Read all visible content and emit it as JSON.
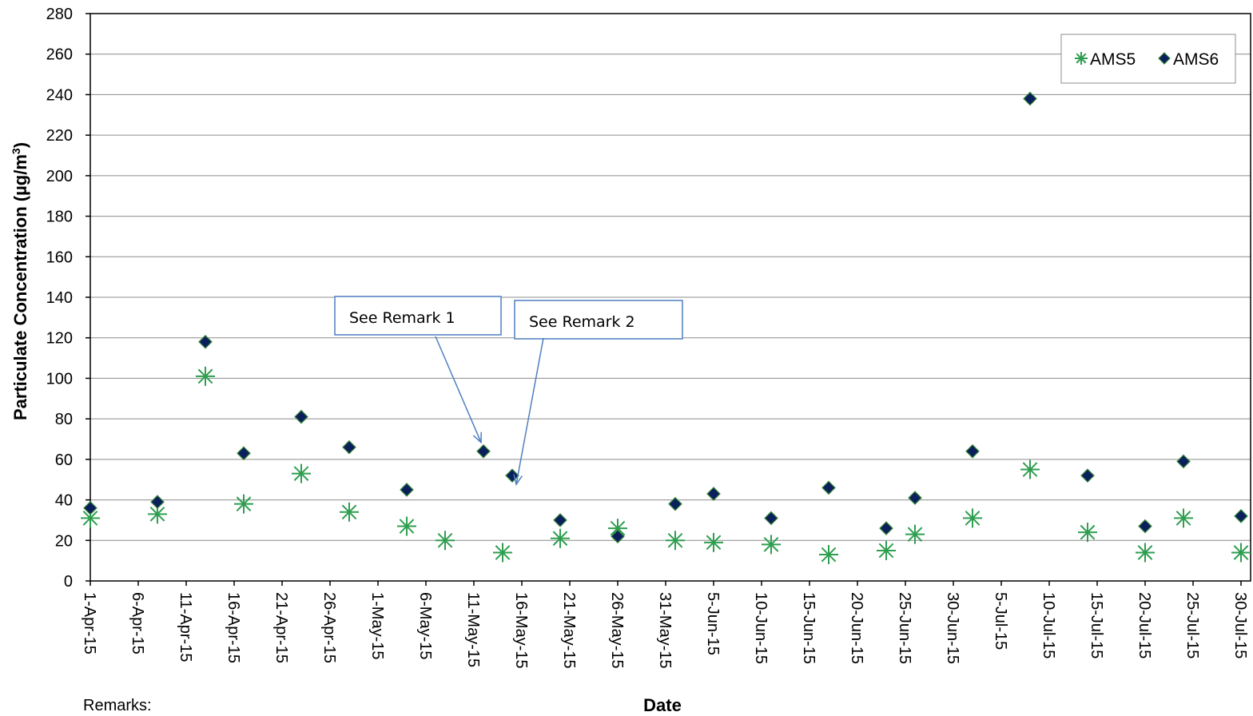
{
  "chart_data": {
    "type": "scatter",
    "title": "",
    "xlabel": "Date",
    "ylabel": "Particulate Concentration (µg/m³)",
    "ylabel_text": "Particulate Concentration (µg/m",
    "ylabel_sup": "3",
    "ylabel_close": ")",
    "ylim": [
      0,
      280
    ],
    "y_ticks": [
      0,
      20,
      40,
      60,
      80,
      100,
      120,
      140,
      160,
      180,
      200,
      220,
      240,
      260,
      280
    ],
    "xlim": [
      "2015-04-01",
      "2015-07-31"
    ],
    "x_tick_labels": [
      "1-Apr-15",
      "6-Apr-15",
      "11-Apr-15",
      "16-Apr-15",
      "21-Apr-15",
      "26-Apr-15",
      "1-May-15",
      "6-May-15",
      "11-May-15",
      "16-May-15",
      "21-May-15",
      "26-May-15",
      "31-May-15",
      "5-Jun-15",
      "10-Jun-15",
      "15-Jun-15",
      "20-Jun-15",
      "25-Jun-15",
      "30-Jun-15",
      "5-Jul-15",
      "10-Jul-15",
      "15-Jul-15",
      "20-Jul-15",
      "25-Jul-15",
      "30-Jul-15"
    ],
    "grid": "horizontal",
    "legend_position": "top-right",
    "series": [
      {
        "name": "AMS5",
        "marker": "asterisk",
        "color": "#2e9e4f",
        "points": [
          {
            "x": "2015-04-01",
            "y": 31
          },
          {
            "x": "2015-04-08",
            "y": 33
          },
          {
            "x": "2015-04-13",
            "y": 101
          },
          {
            "x": "2015-04-17",
            "y": 38
          },
          {
            "x": "2015-04-23",
            "y": 53
          },
          {
            "x": "2015-04-28",
            "y": 34
          },
          {
            "x": "2015-05-04",
            "y": 27
          },
          {
            "x": "2015-05-08",
            "y": 20
          },
          {
            "x": "2015-05-14",
            "y": 14
          },
          {
            "x": "2015-05-20",
            "y": 21
          },
          {
            "x": "2015-05-26",
            "y": 26
          },
          {
            "x": "2015-06-01",
            "y": 20
          },
          {
            "x": "2015-06-05",
            "y": 19
          },
          {
            "x": "2015-06-11",
            "y": 18
          },
          {
            "x": "2015-06-17",
            "y": 13
          },
          {
            "x": "2015-06-23",
            "y": 15
          },
          {
            "x": "2015-06-26",
            "y": 23
          },
          {
            "x": "2015-07-02",
            "y": 31
          },
          {
            "x": "2015-07-08",
            "y": 55
          },
          {
            "x": "2015-07-14",
            "y": 24
          },
          {
            "x": "2015-07-20",
            "y": 14
          },
          {
            "x": "2015-07-24",
            "y": 31
          },
          {
            "x": "2015-07-30",
            "y": 14
          }
        ]
      },
      {
        "name": "AMS6",
        "marker": "diamond",
        "color": "#0a1f5c",
        "points": [
          {
            "x": "2015-04-01",
            "y": 36
          },
          {
            "x": "2015-04-08",
            "y": 39
          },
          {
            "x": "2015-04-13",
            "y": 118
          },
          {
            "x": "2015-04-17",
            "y": 63
          },
          {
            "x": "2015-04-23",
            "y": 81
          },
          {
            "x": "2015-04-28",
            "y": 66
          },
          {
            "x": "2015-05-04",
            "y": 45
          },
          {
            "x": "2015-05-12",
            "y": 64
          },
          {
            "x": "2015-05-15",
            "y": 52
          },
          {
            "x": "2015-05-20",
            "y": 30
          },
          {
            "x": "2015-05-26",
            "y": 22
          },
          {
            "x": "2015-06-01",
            "y": 38
          },
          {
            "x": "2015-06-05",
            "y": 43
          },
          {
            "x": "2015-06-11",
            "y": 31
          },
          {
            "x": "2015-06-17",
            "y": 46
          },
          {
            "x": "2015-06-23",
            "y": 26
          },
          {
            "x": "2015-06-26",
            "y": 41
          },
          {
            "x": "2015-07-02",
            "y": 64
          },
          {
            "x": "2015-07-08",
            "y": 238
          },
          {
            "x": "2015-07-14",
            "y": 52
          },
          {
            "x": "2015-07-20",
            "y": 27
          },
          {
            "x": "2015-07-24",
            "y": 59
          },
          {
            "x": "2015-07-30",
            "y": 32
          }
        ]
      }
    ],
    "annotations": [
      {
        "text": "See Remark 1",
        "target": {
          "x": "2015-05-12",
          "y": 64
        }
      },
      {
        "text": "See Remark 2",
        "target": {
          "x": "2015-05-15",
          "y": 52
        }
      }
    ]
  },
  "footer": {
    "remarks_label": "Remarks:"
  }
}
